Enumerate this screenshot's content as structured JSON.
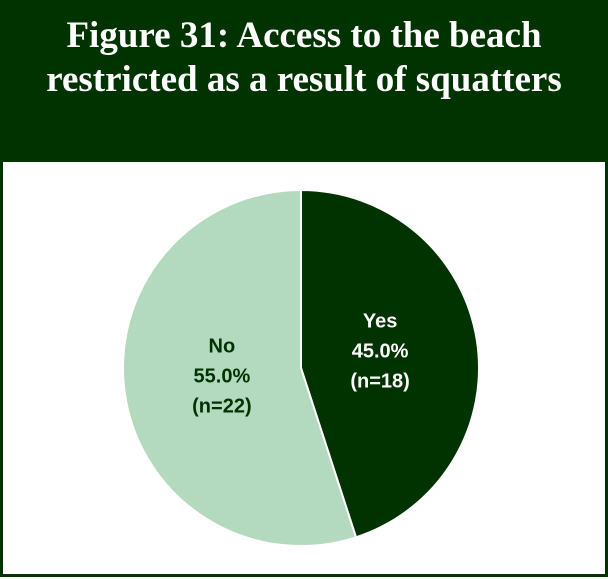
{
  "chart_data": {
    "type": "pie",
    "title": "Figure 31:  Access to the beach restricted as a result of squatters",
    "title_lines": [
      "Figure 31:  Access to the beach",
      "restricted as a result of squatters"
    ],
    "slices": [
      {
        "label": "Yes",
        "percent_text": "45.0%",
        "n_text": "(n=18)",
        "value": 45.0,
        "count": 18,
        "color": "#003300",
        "text_color": "#ffffff"
      },
      {
        "label": "No",
        "percent_text": "55.0%",
        "n_text": "(n=22)",
        "value": 55.0,
        "count": 22,
        "color": "#b3d9bf",
        "text_color": "#003300"
      }
    ],
    "start_angle": "12 o'clock",
    "direction": "clockwise",
    "legend": "none"
  },
  "colors": {
    "header_bg": "#003300",
    "header_text": "#ffffff",
    "slice_border": "#ffffff"
  }
}
